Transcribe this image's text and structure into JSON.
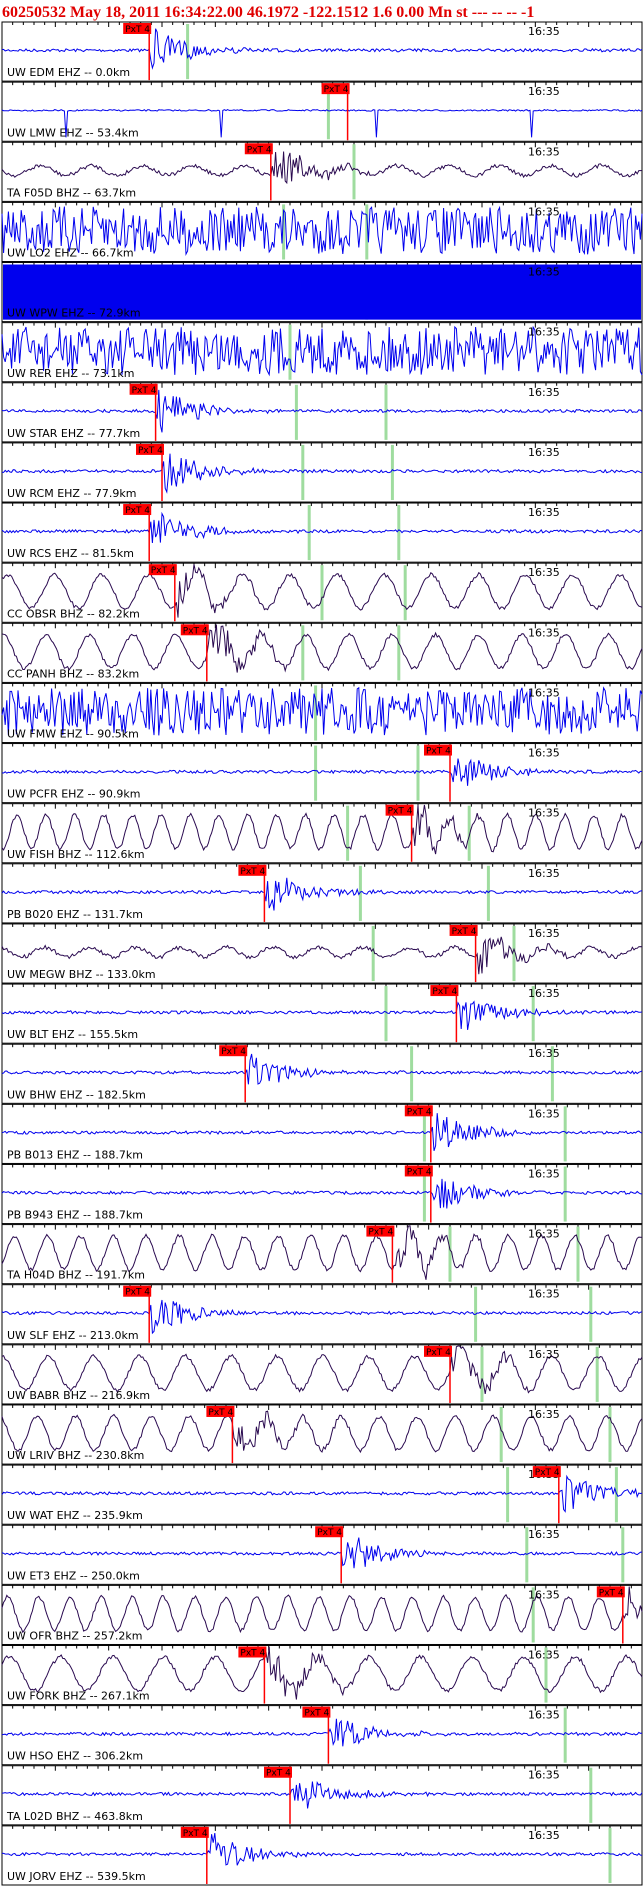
{
  "header": {
    "title": "60250532 May 18, 2011 16:34:22.00   46.1972 -122.1512  1.6 0.00 Mn st --- -- --  -1"
  },
  "traces": [
    {
      "label": "UW EDM EHZ -- 0.0km",
      "time": "16:35",
      "pick": "PxT 4"
    },
    {
      "label": "UW LMW EHZ -- 53.4km",
      "time": "16:35",
      "pick": "PxT 4"
    },
    {
      "label": "TA F05D BHZ -- 63.7km",
      "time": "16:35",
      "pick": "PxT 4"
    },
    {
      "label": "UW LO2 EHZ -- 66.7km",
      "time": "16:35"
    },
    {
      "label": "UW WPW EHZ -- 72.9km",
      "time": "16:35"
    },
    {
      "label": "UW RER EHZ -- 73.1km",
      "time": "16:35"
    },
    {
      "label": "UW STAR EHZ -- 77.7km",
      "time": "16:35",
      "pick": "PxT 4"
    },
    {
      "label": "UW RCM EHZ -- 77.9km",
      "time": "16:35",
      "pick": "PxT 4"
    },
    {
      "label": "UW RCS EHZ -- 81.5km",
      "time": "16:35",
      "pick": "PxT 4"
    },
    {
      "label": "CC OBSR BHZ -- 82.2km",
      "time": "16:35",
      "pick": "PxT 4"
    },
    {
      "label": "CC PANH BHZ -- 83.2km",
      "time": "16:35",
      "pick": "PxT 4"
    },
    {
      "label": "UW FMW EHZ -- 90.5km",
      "time": "16:35"
    },
    {
      "label": "UW PCFR EHZ -- 90.9km",
      "time": "16:35",
      "pick": "PxT 4"
    },
    {
      "label": "UW FISH BHZ -- 112.6km",
      "time": "16:35",
      "pick": "PxT 4"
    },
    {
      "label": "PB B020 EHZ -- 131.7km",
      "time": "16:35",
      "pick": "PxT 4"
    },
    {
      "label": "UW MEGW BHZ -- 133.0km",
      "time": "16:35",
      "pick": "PxT 4"
    },
    {
      "label": "UW BLT EHZ -- 155.5km",
      "time": "16:35",
      "pick": "PxT 4"
    },
    {
      "label": "UW BHW EHZ -- 182.5km",
      "time": "16:35",
      "pick": "PxT 4"
    },
    {
      "label": "PB B013 EHZ -- 188.7km",
      "time": "16:35",
      "pick": "PxT 4"
    },
    {
      "label": "PB B943 EHZ -- 188.7km",
      "time": "16:35",
      "pick": "PxT 4"
    },
    {
      "label": "TA H04D BHZ -- 191.7km",
      "time": "16:35",
      "pick": "PxT 4"
    },
    {
      "label": "UW SLF EHZ -- 213.0km",
      "time": "16:35",
      "pick": "PxT 4"
    },
    {
      "label": "UW BABR BHZ -- 216.9km",
      "time": "16:35",
      "pick": "PxT 4"
    },
    {
      "label": "UW LRIV BHZ -- 230.8km",
      "time": "16:35",
      "pick": "PxT 4"
    },
    {
      "label": "UW WAT EHZ -- 235.9km",
      "time": "16:35",
      "pick": "PxT 4"
    },
    {
      "label": "UW ET3 EHZ -- 250.0km",
      "time": "16:35",
      "pick": "PxT 4"
    },
    {
      "label": "UW OFR BHZ -- 257.2km",
      "time": "16:35",
      "pick": "PxT 4"
    },
    {
      "label": "UW FORK BHZ -- 267.1km",
      "time": "16:35",
      "pick": "PxT 4"
    },
    {
      "label": "UW HSO EHZ -- 306.2km",
      "time": "16:35",
      "pick": "PxT 4"
    },
    {
      "label": "TA L02D BHZ -- 463.8km",
      "time": "16:35",
      "pick": "PxT 4"
    },
    {
      "label": "UW JORV EHZ -- 539.5km",
      "time": "16:35",
      "pick": "PxT 4"
    }
  ]
}
